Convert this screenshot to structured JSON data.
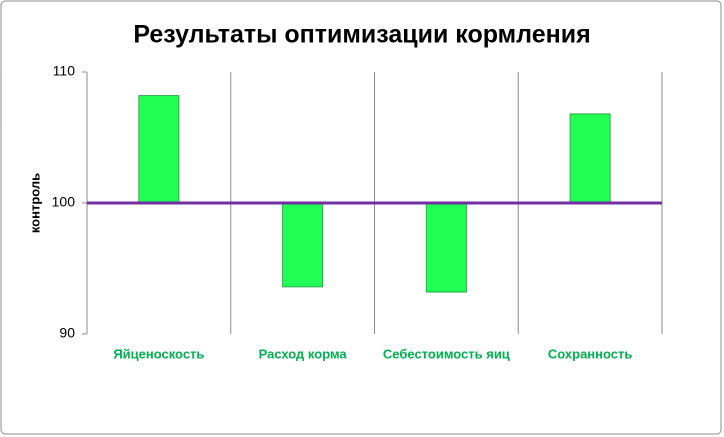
{
  "chart_data": {
    "type": "bar",
    "title": "Результаты оптимизации кормления",
    "y_label": "контроль",
    "categories": [
      "Яйценоскость",
      "Расход корма",
      "Себестоимость яиц",
      "Сохранность"
    ],
    "values": [
      108.2,
      93.6,
      93.2,
      106.8
    ],
    "color": "#22ff55",
    "label_color": "#00b050",
    "baseline": 100,
    "baseline_color": "#7030a0",
    "ylim": [
      90,
      110
    ],
    "yticks": [
      90,
      100,
      110
    ],
    "grid": true
  }
}
